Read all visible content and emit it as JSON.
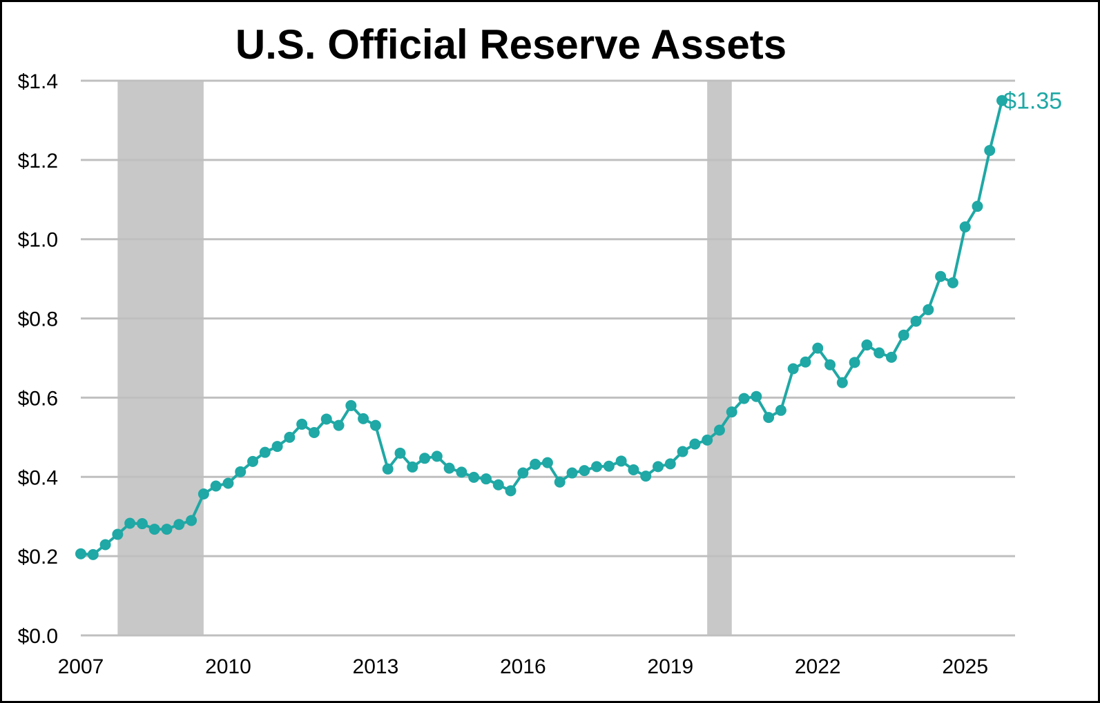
{
  "chart_data": {
    "type": "line",
    "title": "U.S. Official Reserve Assets",
    "xlabel": "",
    "ylabel": "",
    "x_ticks": [
      "2007",
      "2010",
      "2013",
      "2016",
      "2019",
      "2022",
      "2025"
    ],
    "y_ticks": [
      "$0.0",
      "$0.2",
      "$0.4",
      "$0.6",
      "$0.8",
      "$1.0",
      "$1.2",
      "$1.4"
    ],
    "ylim": [
      0,
      1.4
    ],
    "xlim": [
      2007.0,
      2026.3
    ],
    "grid": "horizontal",
    "legend": "none",
    "series_color": "#1fa8a5",
    "shade_color": "#c8c8c8",
    "gridline_color": "#bfbfbf",
    "shaded_periods": [
      {
        "start": 2007.75,
        "end": 2009.5
      },
      {
        "start": 2019.75,
        "end": 2020.25
      }
    ],
    "end_label": "$1.35",
    "series": [
      {
        "x": [
          2007.0,
          2007.25,
          2007.5,
          2007.75,
          2008.0,
          2008.25,
          2008.5,
          2008.75,
          2009.0,
          2009.25,
          2009.5,
          2009.75,
          2010.0,
          2010.25,
          2010.5,
          2010.75,
          2011.0,
          2011.25,
          2011.5,
          2011.75,
          2012.0,
          2012.25,
          2012.5,
          2012.75,
          2013.0,
          2013.25,
          2013.5,
          2013.75,
          2014.0,
          2014.25,
          2014.5,
          2014.75,
          2015.0,
          2015.25,
          2015.5,
          2015.75,
          2016.0,
          2016.25,
          2016.5,
          2016.75,
          2017.0,
          2017.25,
          2017.5,
          2017.75,
          2018.0,
          2018.25,
          2018.5,
          2018.75,
          2019.0,
          2019.25,
          2019.5,
          2019.75,
          2020.0,
          2020.25,
          2020.5,
          2020.75,
          2021.0,
          2021.25,
          2021.5,
          2021.75,
          2022.0,
          2022.25,
          2022.5,
          2022.75,
          2023.0,
          2023.25,
          2023.5,
          2023.75,
          2024.0,
          2024.25,
          2024.5,
          2024.75,
          2025.0,
          2025.25,
          2025.5,
          2025.75
        ],
        "values": [
          0.206,
          0.204,
          0.229,
          0.255,
          0.283,
          0.282,
          0.268,
          0.268,
          0.28,
          0.29,
          0.357,
          0.377,
          0.384,
          0.413,
          0.439,
          0.462,
          0.477,
          0.5,
          0.533,
          0.512,
          0.546,
          0.53,
          0.58,
          0.547,
          0.53,
          0.42,
          0.46,
          0.425,
          0.447,
          0.452,
          0.422,
          0.412,
          0.399,
          0.395,
          0.38,
          0.365,
          0.41,
          0.432,
          0.436,
          0.387,
          0.41,
          0.416,
          0.426,
          0.427,
          0.44,
          0.418,
          0.402,
          0.426,
          0.433,
          0.464,
          0.483,
          0.493,
          0.518,
          0.564,
          0.598,
          0.603,
          0.55,
          0.568,
          0.673,
          0.69,
          0.725,
          0.683,
          0.638,
          0.689,
          0.733,
          0.713,
          0.702,
          0.758,
          0.793,
          0.822,
          0.906,
          0.89,
          1.031,
          1.083,
          1.224,
          1.35
        ]
      }
    ]
  }
}
